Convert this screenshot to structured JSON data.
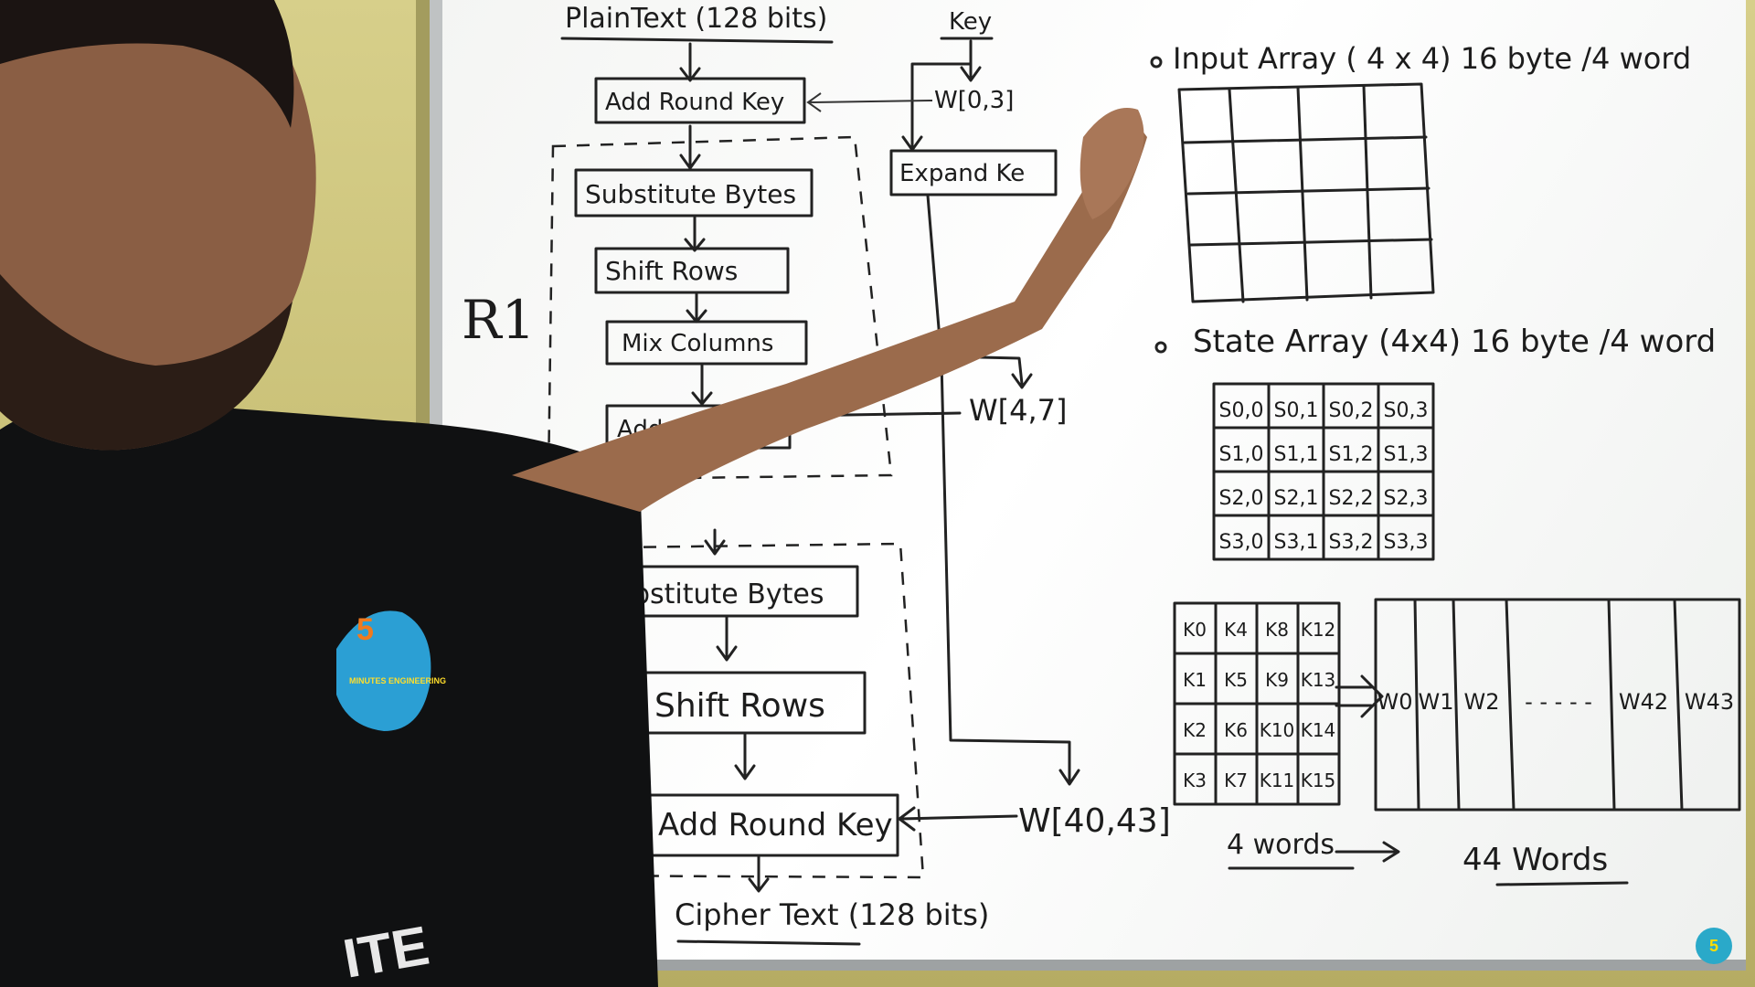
{
  "diagram": {
    "plaintext": "PlainText (128 bits)",
    "key": "Key",
    "w03": "W[0,3]",
    "expand_key": "Expand Ke",
    "round1": {
      "label": "R1",
      "add_round_key_pre": "Add Round Key",
      "substitute_bytes": "Substitute Bytes",
      "shift_rows": "Shift Rows",
      "mix_columns": "Mix Columns",
      "add_round_key": "Add"
    },
    "w47": "W[4,7]",
    "final_round": {
      "substitute_bytes": "bstitute Bytes",
      "shift_rows": "Shift Rows",
      "add_round_key": "Add Round Key"
    },
    "w4043": "W[40,43]",
    "ciphertext": "Cipher Text (128 bits)"
  },
  "input_array": {
    "label": "Input Array ( 4 x 4) 16 byte /4 word"
  },
  "state_array": {
    "label": "State Array (4x4) 16 byte /4 word",
    "cells": [
      [
        "S0,0",
        "S0,1",
        "S0,2",
        "S0,3"
      ],
      [
        "S1,0",
        "S1,1",
        "S1,2",
        "S1,3"
      ],
      [
        "S2,0",
        "S2,1",
        "S2,2",
        "S2,3"
      ],
      [
        "S3,0",
        "S3,1",
        "S3,2",
        "S3,3"
      ]
    ]
  },
  "key_array": {
    "cells": [
      [
        "K0",
        "K4",
        "K8",
        "K12"
      ],
      [
        "K1",
        "K5",
        "K9",
        "K13"
      ],
      [
        "K2",
        "K6",
        "K10",
        "K14"
      ],
      [
        "K3",
        "K7",
        "K11",
        "K15"
      ]
    ],
    "caption": "4 words"
  },
  "word_array": {
    "cells": [
      "W0",
      "W1",
      "W2",
      "- - - - -",
      "W42",
      "W43"
    ],
    "caption": "44 Words"
  },
  "shirt_logo": {
    "number": "5",
    "text": "MINUTES ENGINEERING"
  },
  "shirt_text": "ITE",
  "channel_logo": "5"
}
